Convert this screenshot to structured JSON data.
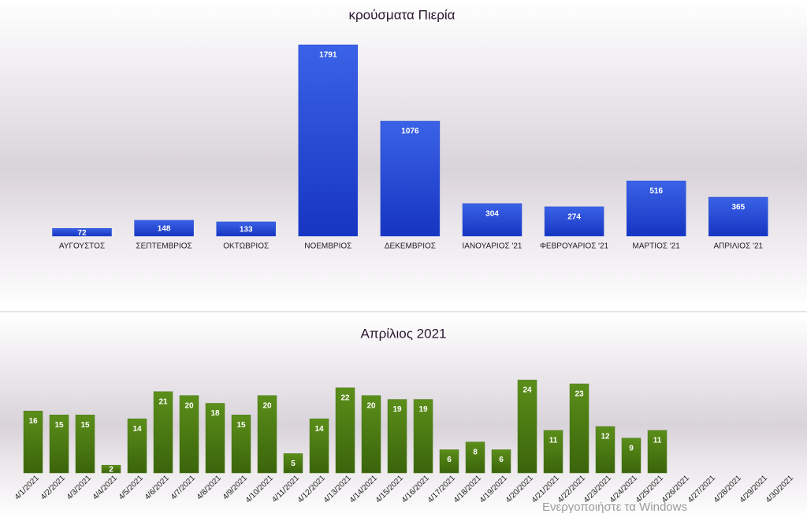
{
  "chart_data": [
    {
      "type": "bar",
      "title": "κρούσματα Πιερία",
      "categories": [
        "ΑΥΓΟΥΣΤΟΣ",
        "ΣΕΠΤΕΜΒΡΙΟΣ",
        "ΟΚΤΩΒΡΙΟΣ",
        "ΝΟΕΜΒΡΙΟΣ",
        "ΔΕΚΕΜΒΡΙΟΣ",
        "ΙΑΝΟΥΑΡΙΟΣ '21",
        "ΦΕΒΡΟΥΑΡΙΟΣ '21",
        "ΜΑΡΤΙΟΣ '21",
        "ΑΠΡΙΛΙΟΣ '21"
      ],
      "values": [
        72,
        148,
        133,
        1791,
        1076,
        304,
        274,
        516,
        365
      ],
      "color": "#2447d4"
    },
    {
      "type": "bar",
      "title": "Απρίλιος 2021",
      "categories": [
        "4/1/2021",
        "4/2/2021",
        "4/3/2021",
        "4/4/2021",
        "4/5/2021",
        "4/6/2021",
        "4/7/2021",
        "4/8/2021",
        "4/9/2021",
        "4/10/2021",
        "4/11/2021",
        "4/12/2021",
        "4/13/2021",
        "4/14/2021",
        "4/15/2021",
        "4/16/2021",
        "4/17/2021",
        "4/18/2021",
        "4/19/2021",
        "4/20/2021",
        "4/21/2021",
        "4/22/2021",
        "4/23/2021",
        "4/24/2021",
        "4/25/2021",
        "4/26/2021",
        "4/27/2021",
        "4/28/2021",
        "4/29/2021",
        "4/30/2021"
      ],
      "values": [
        16,
        15,
        15,
        2,
        14,
        21,
        20,
        18,
        15,
        20,
        5,
        14,
        22,
        20,
        19,
        19,
        6,
        8,
        6,
        24,
        11,
        23,
        12,
        9,
        11,
        null,
        null,
        null,
        null,
        null
      ],
      "color": "#4a7812"
    }
  ],
  "watermark": "Ενεργοποιήστε τα Windows"
}
